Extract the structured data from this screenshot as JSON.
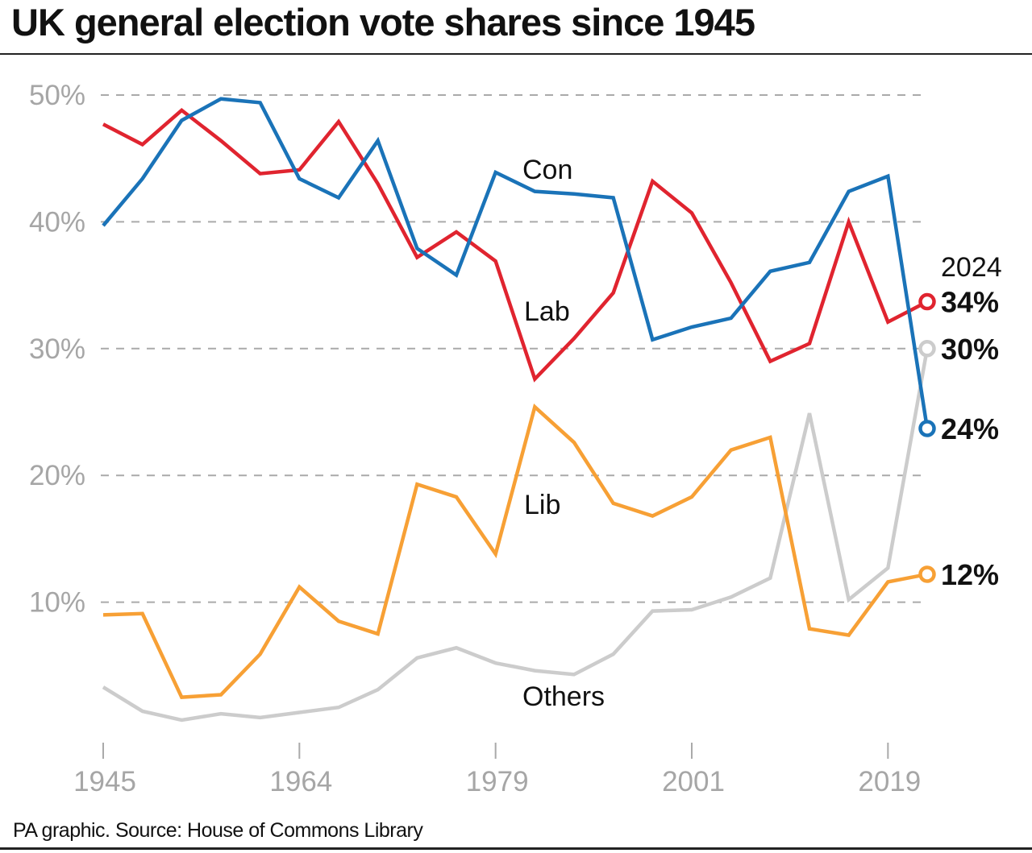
{
  "title": "UK general election vote shares since 1945",
  "source": "PA graphic. Source: House of Commons Library",
  "chart_data": {
    "type": "line",
    "title": "UK general election vote shares since 1945",
    "categories": [
      "1945",
      "1950",
      "1951",
      "1955",
      "1959",
      "1964",
      "1966",
      "1970",
      "Feb 1974",
      "Oct 1974",
      "1979",
      "1983",
      "1987",
      "1992",
      "1997",
      "2001",
      "2005",
      "2010",
      "2015",
      "2017",
      "2019",
      "2024"
    ],
    "x_tick_labels": [
      "1945",
      "1964",
      "1979",
      "2001",
      "2019"
    ],
    "x_tick_indices": [
      0,
      5,
      10,
      15,
      20
    ],
    "y_ticks": [
      10,
      20,
      30,
      40,
      50
    ],
    "y_tick_labels": [
      "10%",
      "20%",
      "30%",
      "40%",
      "50%"
    ],
    "ylim": [
      0,
      50
    ],
    "grid": "horizontal dashed",
    "end_year_label": "2024",
    "series": [
      {
        "name": "Con",
        "color": "#1a73b8",
        "end_label": "24%",
        "values": [
          39.7,
          43.4,
          48.0,
          49.7,
          49.4,
          43.4,
          41.9,
          46.4,
          37.9,
          35.8,
          43.9,
          42.4,
          42.2,
          41.9,
          30.7,
          31.7,
          32.4,
          36.1,
          36.8,
          42.4,
          43.6,
          23.7
        ]
      },
      {
        "name": "Lab",
        "color": "#e0242f",
        "end_label": "34%",
        "values": [
          47.7,
          46.1,
          48.8,
          46.4,
          43.8,
          44.1,
          47.9,
          43.0,
          37.2,
          39.2,
          36.9,
          27.6,
          30.8,
          34.4,
          43.2,
          40.7,
          35.2,
          29.0,
          30.4,
          40.0,
          32.1,
          33.7
        ]
      },
      {
        "name": "Lib",
        "color": "#f7a035",
        "end_label": "12%",
        "values": [
          9.0,
          9.1,
          2.5,
          2.7,
          5.9,
          11.2,
          8.5,
          7.5,
          19.3,
          18.3,
          13.8,
          25.4,
          22.6,
          17.8,
          16.8,
          18.3,
          22.0,
          23.0,
          7.9,
          7.4,
          11.6,
          12.2
        ]
      },
      {
        "name": "Others",
        "color": "#cccccc",
        "end_label": "30%",
        "values": [
          3.3,
          1.4,
          0.7,
          1.2,
          0.9,
          1.3,
          1.7,
          3.1,
          5.6,
          6.4,
          5.2,
          4.6,
          4.3,
          5.9,
          9.3,
          9.4,
          10.4,
          11.9,
          24.9,
          10.2,
          12.7,
          30.0
        ]
      }
    ]
  }
}
